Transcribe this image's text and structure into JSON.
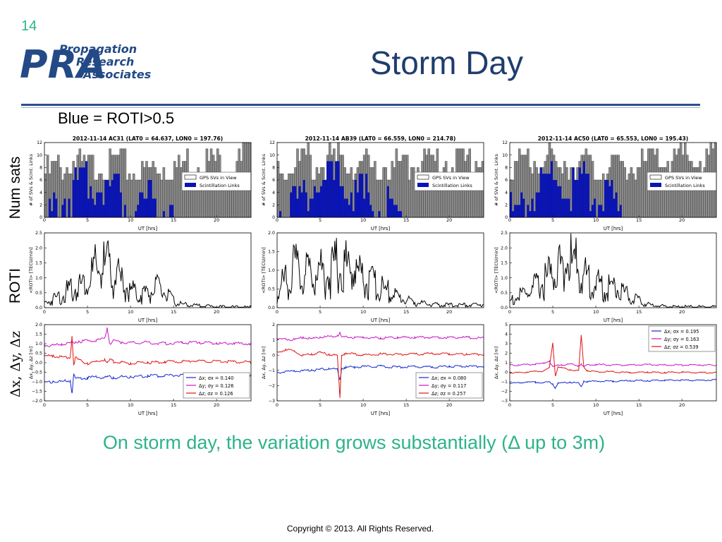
{
  "slide": {
    "number": "14",
    "title": "Storm Day",
    "subtitle": "Blue = ROTI>0.5",
    "caption": "On storm day, the variation grows substantially (Δ up to 3m)",
    "copyright": "Copyright © 2013.  All Rights Reserved.",
    "row_labels": {
      "num_sats": "Num sats",
      "roti": "ROTI",
      "dxyz": "Δx, Δy, Δz"
    }
  },
  "logo": {
    "monogram": "PRA",
    "line1": "Propagation",
    "line2": "Research",
    "line3": "Associates"
  },
  "colors": {
    "title": "#1f3d6e",
    "caption": "#2db38a",
    "gps_bar": "#8a8a8a",
    "scint_bar": "#0a14b4",
    "dx": "#1428d2",
    "dy": "#c814c8",
    "dz": "#e01414",
    "roti_line": "#000000"
  },
  "chart_data": [
    {
      "type": "bar",
      "station": "AC31",
      "title": "2012-11-14    AC31 (LAT0 = 64.637, LON0 = 197.76)",
      "xlabel": "UT [hrs]",
      "ylabel": "# of SVs & Scint. Links",
      "xlim": [
        0,
        24
      ],
      "ylim": [
        0,
        12
      ],
      "xticks": [
        "0",
        "5",
        "10",
        "15",
        "20"
      ],
      "yticks": [
        "0",
        "2",
        "4",
        "6",
        "8",
        "10",
        "12"
      ],
      "legend": {
        "position": "right",
        "entries": [
          "GPS SVs in View",
          "Scintillation Links"
        ]
      },
      "gps_svs_hourly": [
        8,
        9,
        9,
        10,
        9,
        9,
        10,
        9,
        10,
        9,
        8,
        8,
        9,
        9,
        8,
        9,
        10,
        10,
        10,
        10,
        10,
        10,
        10,
        11
      ],
      "scint_links_hourly": [
        1,
        3,
        5,
        6,
        7,
        8,
        7,
        7,
        7,
        4,
        4,
        5,
        6,
        3,
        1,
        0,
        0,
        0,
        0,
        0,
        0,
        0,
        0,
        0
      ]
    },
    {
      "type": "bar",
      "station": "AB39",
      "title": "2012-11-14    AB39 (LAT0 = 66.559, LON0 = 214.78)",
      "xlabel": "UT [hrs]",
      "ylabel": "# of SVs & Scint. Links",
      "xlim": [
        0,
        24
      ],
      "ylim": [
        0,
        12
      ],
      "xticks": [
        "0",
        "5",
        "10",
        "15",
        "20"
      ],
      "yticks": [
        "0",
        "2",
        "4",
        "6",
        "8",
        "10",
        "12"
      ],
      "legend": {
        "position": "right",
        "entries": [
          "GPS SVs in View",
          "Scintillation Links"
        ]
      },
      "gps_svs_hourly": [
        9,
        9,
        10,
        10,
        9,
        9,
        10,
        10,
        10,
        9,
        9,
        8,
        9,
        9,
        9,
        9,
        10,
        10,
        10,
        10,
        10,
        10,
        10,
        10
      ],
      "scint_links_hourly": [
        3,
        4,
        5,
        6,
        7,
        7,
        8,
        8,
        7,
        6,
        5,
        4,
        3,
        2,
        1,
        1,
        0,
        0,
        0,
        0,
        0,
        0,
        0,
        0
      ]
    },
    {
      "type": "bar",
      "station": "AC50",
      "title": "2012-11-14    AC50 (LAT0 = 65.553, LON0 = 195.43)",
      "xlabel": "UT [hrs]",
      "ylabel": "# of SVs & Scint. Links",
      "xlim": [
        0,
        24
      ],
      "ylim": [
        0,
        12
      ],
      "xticks": [
        "0",
        "5",
        "10",
        "15",
        "20"
      ],
      "yticks": [
        "0",
        "2",
        "4",
        "6",
        "8",
        "10",
        "12"
      ],
      "legend": {
        "position": "right",
        "entries": [
          "GPS SVs in View",
          "Scintillation Links"
        ]
      },
      "gps_svs_hourly": [
        9,
        9,
        10,
        10,
        10,
        9,
        10,
        10,
        10,
        9,
        9,
        8,
        9,
        9,
        9,
        9,
        10,
        10,
        10,
        10,
        10,
        10,
        10,
        11
      ],
      "scint_links_hourly": [
        2,
        4,
        6,
        7,
        8,
        8,
        7,
        7,
        7,
        6,
        5,
        4,
        3,
        2,
        1,
        0,
        0,
        0,
        0,
        0,
        0,
        0,
        0,
        0
      ]
    },
    {
      "type": "line",
      "station": "AC31",
      "xlabel": "UT [hrs]",
      "ylabel": "<ROTI> [TECU/min]",
      "xlim": [
        0,
        24
      ],
      "ylim": [
        0,
        2.5
      ],
      "xticks": [
        "0",
        "5",
        "10",
        "15",
        "20"
      ],
      "yticks": [
        "0.0",
        "0.5",
        "1.0",
        "1.5",
        "2.0",
        "2.5"
      ],
      "x": [
        0,
        1,
        2,
        3,
        4,
        5,
        6,
        7,
        8,
        9,
        10,
        11,
        12,
        13,
        14,
        15,
        16,
        17,
        18,
        19,
        20,
        21,
        22,
        23,
        24
      ],
      "y": [
        0.2,
        0.4,
        0.6,
        0.8,
        1.0,
        1.3,
        1.7,
        1.9,
        1.7,
        1.1,
        0.8,
        0.6,
        0.7,
        0.9,
        0.7,
        0.3,
        0.15,
        0.12,
        0.1,
        0.08,
        0.05,
        0.05,
        0.04,
        0.04,
        0.04
      ]
    },
    {
      "type": "line",
      "station": "AB39",
      "xlabel": "UT [hrs]",
      "ylabel": "<ROTI> [TECU/min]",
      "xlim": [
        0,
        24
      ],
      "ylim": [
        0,
        2.0
      ],
      "xticks": [
        "0",
        "5",
        "10",
        "15",
        "20"
      ],
      "yticks": [
        "0.0",
        "0.5",
        "1.0",
        "1.5",
        "2.0"
      ],
      "x": [
        0,
        1,
        2,
        3,
        4,
        5,
        6,
        7,
        8,
        9,
        10,
        11,
        12,
        13,
        14,
        15,
        16,
        17,
        18,
        19,
        20,
        21,
        22,
        23,
        24
      ],
      "y": [
        0.4,
        1.1,
        1.4,
        1.2,
        1.3,
        1.4,
        1.2,
        1.6,
        1.5,
        1.5,
        1.1,
        0.9,
        0.7,
        0.6,
        0.4,
        0.3,
        0.2,
        0.15,
        0.12,
        0.1,
        0.1,
        0.1,
        0.1,
        0.1,
        0.15
      ]
    },
    {
      "type": "line",
      "station": "AC50",
      "xlabel": "UT [hrs]",
      "ylabel": "<ROTI> [TECU/min]",
      "xlim": [
        0,
        24
      ],
      "ylim": [
        0,
        2.5
      ],
      "xticks": [
        "0",
        "5",
        "10",
        "15",
        "20"
      ],
      "yticks": [
        "0.0",
        "0.5",
        "1.0",
        "1.5",
        "2.0",
        "2.5"
      ],
      "x": [
        0,
        1,
        2,
        3,
        4,
        5,
        6,
        7,
        8,
        9,
        10,
        11,
        12,
        13,
        14,
        15,
        16,
        17,
        18,
        19,
        20,
        21,
        22,
        23,
        24
      ],
      "y": [
        0.3,
        0.5,
        0.7,
        0.9,
        1.2,
        1.6,
        2.0,
        2.1,
        1.8,
        1.3,
        1.1,
        0.9,
        1.0,
        0.8,
        0.5,
        0.3,
        0.15,
        0.1,
        0.08,
        0.06,
        0.06,
        0.05,
        0.05,
        0.05,
        0.05
      ]
    },
    {
      "type": "line",
      "station": "AC31",
      "xlabel": "UT [hrs]",
      "ylabel": "Δx, Δy, Δz [m]",
      "xlim": [
        0,
        24
      ],
      "ylim": [
        -2.0,
        2.0
      ],
      "xticks": [
        "0",
        "5",
        "10",
        "15",
        "20"
      ],
      "yticks": [
        "−2.0",
        "−1.5",
        "−1.0",
        "−0.5",
        "0.0",
        "0.5",
        "1.0",
        "1.5",
        "2.0"
      ],
      "legend": {
        "position": "bottom-right"
      },
      "x": [
        0,
        1,
        2,
        3,
        3.2,
        3.4,
        3.6,
        4,
        5,
        6,
        7,
        7.3,
        7.6,
        8,
        9,
        10,
        12,
        14,
        16,
        18,
        20,
        22,
        24
      ],
      "series": [
        {
          "name": "Δx; σx = 0.140",
          "values": [
            -1.0,
            -0.95,
            -0.95,
            -0.9,
            -1.6,
            -0.6,
            -0.8,
            -0.8,
            -0.75,
            -0.7,
            -0.75,
            -0.7,
            -0.7,
            -0.75,
            -0.7,
            -0.7,
            -0.65,
            -0.65,
            -0.6,
            -0.6,
            -0.6,
            -0.6,
            -0.6
          ]
        },
        {
          "name": "Δy; σy = 0.126",
          "values": [
            0.95,
            0.95,
            1.0,
            1.05,
            1.1,
            1.05,
            1.1,
            1.15,
            1.2,
            1.2,
            1.3,
            1.85,
            1.0,
            1.2,
            1.1,
            1.1,
            1.1,
            1.05,
            1.1,
            1.1,
            1.05,
            1.05,
            1.05
          ]
        },
        {
          "name": "Δz; σz = 0.126",
          "values": [
            0.4,
            0.4,
            0.35,
            0.3,
            1.4,
            -0.1,
            0.3,
            0.2,
            0.0,
            0.1,
            0.2,
            0.0,
            0.2,
            0.1,
            0.05,
            0.0,
            0.05,
            0.1,
            0.1,
            0.15,
            0.1,
            0.1,
            0.05
          ]
        }
      ]
    },
    {
      "type": "line",
      "station": "AB39",
      "xlabel": "UT [hrs]",
      "ylabel": "Δx, Δy, Δz [m]",
      "xlim": [
        0,
        24
      ],
      "ylim": [
        -3,
        2
      ],
      "xticks": [
        "0",
        "5",
        "10",
        "15",
        "20"
      ],
      "yticks": [
        "−3",
        "−2",
        "−1",
        "0",
        "1",
        "2"
      ],
      "legend": {
        "position": "bottom-right"
      },
      "x": [
        0,
        1,
        2,
        3,
        4,
        5,
        6,
        7,
        7.3,
        7.5,
        7.8,
        8,
        9,
        10,
        12,
        14,
        16,
        18,
        20,
        22,
        24
      ],
      "series": [
        {
          "name": "Δx; σx = 0.080",
          "values": [
            -1.1,
            -1.05,
            -1.0,
            -1.0,
            -0.95,
            -0.9,
            -0.85,
            -0.9,
            -1.6,
            -0.85,
            -0.8,
            -0.75,
            -0.75,
            -0.7,
            -0.7,
            -0.75,
            -0.7,
            -0.75,
            -0.7,
            -0.7,
            -0.7
          ]
        },
        {
          "name": "Δy; σy = 0.117",
          "values": [
            1.1,
            1.1,
            1.05,
            1.2,
            1.1,
            1.2,
            1.25,
            1.3,
            1.5,
            1.2,
            1.2,
            1.25,
            1.2,
            1.2,
            1.15,
            1.2,
            1.2,
            1.2,
            1.2,
            1.2,
            1.15
          ]
        },
        {
          "name": "Δz; σz = 0.257",
          "values": [
            0.2,
            0.4,
            0.3,
            0.0,
            0.1,
            0.2,
            0.1,
            0.0,
            -2.8,
            0.0,
            0.1,
            0.15,
            0.1,
            0.05,
            0.1,
            0.1,
            0.1,
            0.15,
            0.1,
            0.1,
            0.1
          ]
        }
      ]
    },
    {
      "type": "line",
      "station": "AC50",
      "xlabel": "UT [hrs]",
      "ylabel": "Δx, Δy, Δz [m]",
      "xlim": [
        0,
        24
      ],
      "ylim": [
        -3,
        5
      ],
      "xticks": [
        "0",
        "5",
        "10",
        "15",
        "20"
      ],
      "yticks": [
        "−3",
        "−2",
        "−1",
        "0",
        "1",
        "2",
        "3",
        "4",
        "5"
      ],
      "legend": {
        "position": "top-right"
      },
      "x": [
        0,
        1,
        2,
        3,
        4,
        4.6,
        5,
        5.3,
        5.6,
        6,
        7,
        8,
        8.3,
        8.6,
        9,
        10,
        12,
        14,
        16,
        18,
        20,
        22,
        24
      ],
      "series": [
        {
          "name": "Δx; σx = 0.195",
          "values": [
            -1.1,
            -1.05,
            -1.0,
            -1.0,
            -1.05,
            -1.0,
            -1.2,
            -1.6,
            -1.1,
            -1.1,
            -1.0,
            -1.1,
            -1.5,
            -0.9,
            -0.95,
            -0.9,
            -0.9,
            -0.85,
            -0.85,
            -0.8,
            -0.8,
            -0.8,
            -0.75
          ]
        },
        {
          "name": "Δy; σy = 0.163",
          "values": [
            0.8,
            0.8,
            0.85,
            0.9,
            1.0,
            1.2,
            0.6,
            0.7,
            0.8,
            0.8,
            0.9,
            0.7,
            0.9,
            0.6,
            0.8,
            0.85,
            0.8,
            0.8,
            0.85,
            0.8,
            0.8,
            0.8,
            0.8
          ]
        },
        {
          "name": "Δz; σz = 0.539",
          "values": [
            0.0,
            0.0,
            0.05,
            0.1,
            0.2,
            0.5,
            3.1,
            -0.4,
            0.6,
            0.5,
            0.3,
            0.2,
            3.9,
            0.6,
            0.2,
            0.1,
            0.1,
            0.0,
            0.05,
            0.0,
            0.05,
            0.0,
            0.0
          ]
        }
      ]
    }
  ]
}
